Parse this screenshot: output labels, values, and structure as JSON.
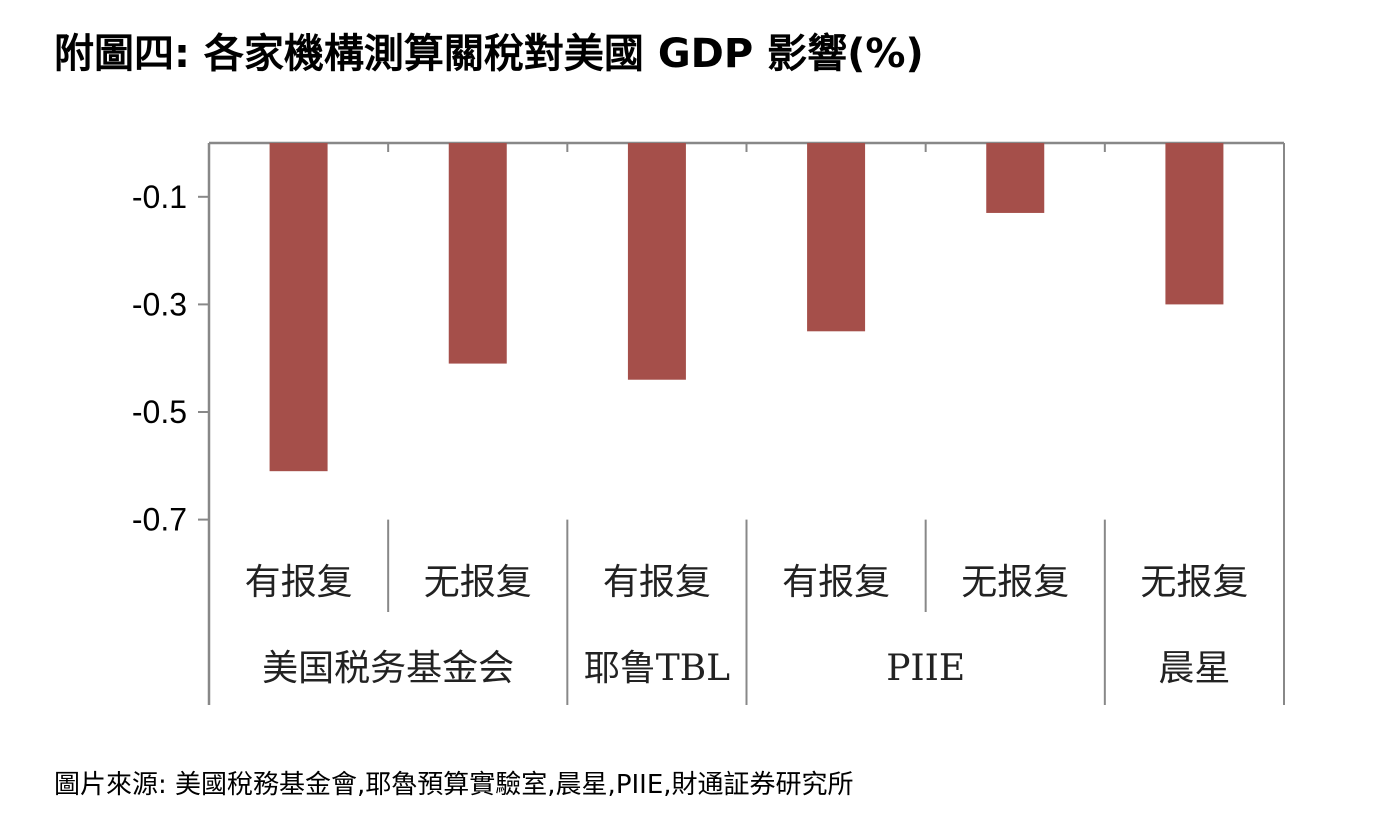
{
  "title": "附圖四: 各家機構測算關稅對美國 GDP 影響(%)",
  "source": "圖片來源: 美國稅務基金會,耶魯預算實驗室,晨星,PIIE,財通証券研究所",
  "chart_data": {
    "type": "bar",
    "categories": [
      "有报复",
      "无报复",
      "有报复",
      "有报复",
      "无报复",
      "无报复"
    ],
    "groups": [
      {
        "label": "美国税务基金会",
        "span": [
          0,
          1
        ]
      },
      {
        "label": "耶鲁TBL",
        "span": [
          2,
          2
        ]
      },
      {
        "label": "PIIE",
        "span": [
          3,
          4
        ]
      },
      {
        "label": "晨星",
        "span": [
          5,
          5
        ]
      }
    ],
    "values": [
      -0.61,
      -0.41,
      -0.44,
      -0.35,
      -0.13,
      -0.3
    ],
    "ylim": [
      -0.7,
      0.0
    ],
    "yticks": [
      -0.1,
      -0.3,
      -0.5,
      -0.7
    ],
    "ytick_labels": [
      "-0.1",
      "-0.3",
      "-0.5",
      "-0.7"
    ],
    "xlabel": "",
    "ylabel": "",
    "grid": false,
    "legend": "none",
    "bar_color": "#a54f4a",
    "axis_color": "#888888"
  }
}
